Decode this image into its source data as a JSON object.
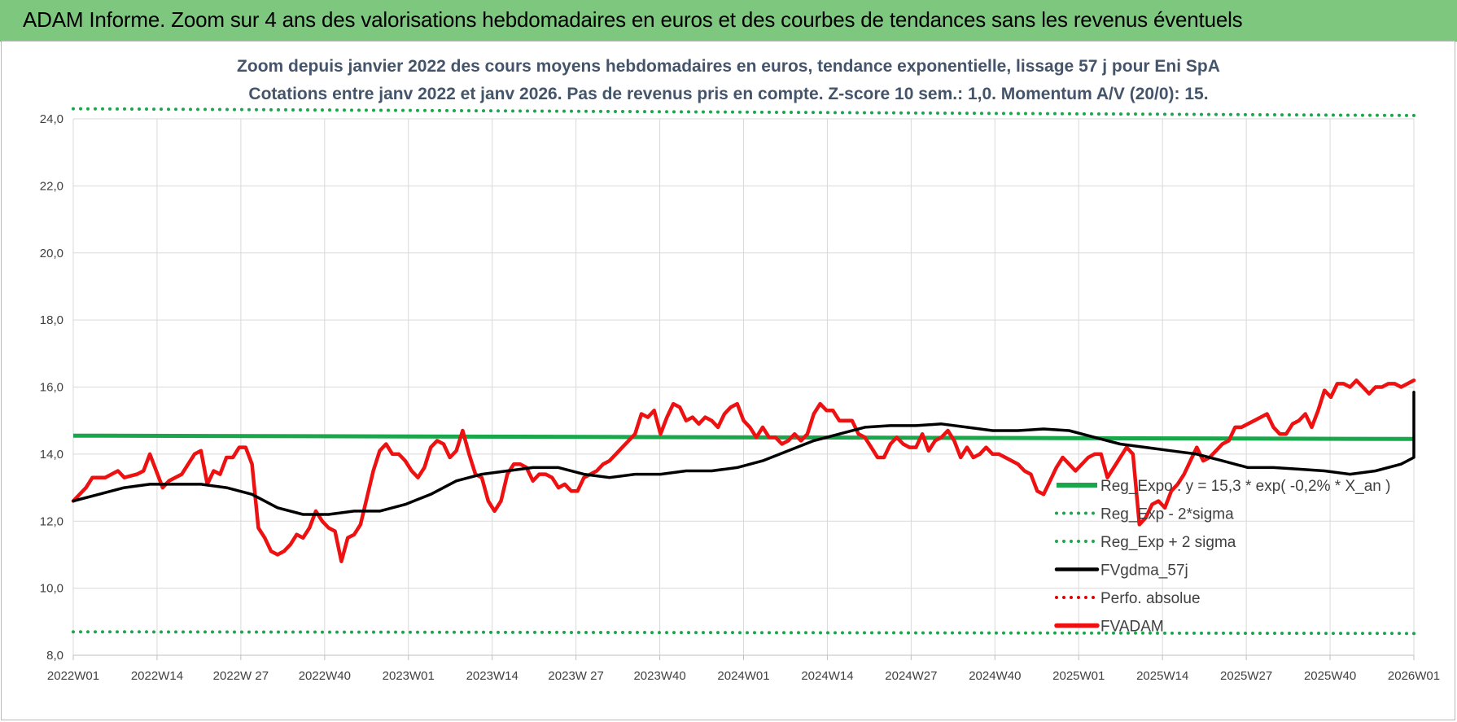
{
  "banner": {
    "title": "ADAM Informe. Zoom sur 4 ans des valorisations hebdomadaires en euros et des courbes de tendances sans les revenus éventuels"
  },
  "chart_data": {
    "type": "line",
    "title_line1": "Zoom depuis janvier 2022 des cours moyens hebdomadaires en euros, tendance exponentielle, lissage 57 j pour Eni SpA",
    "title_line2": "Cotations entre janv 2022 et janv 2026. Pas de revenus pris en compte. Z-score 10 sem.: 1,0. Momentum A/V (20/0): 15.",
    "ylim": [
      8,
      24
    ],
    "yticks": [
      "8,0",
      "10,0",
      "12,0",
      "14,0",
      "16,0",
      "18,0",
      "20,0",
      "22,0",
      "24,0"
    ],
    "x_ticks": [
      "2022W01",
      "2022W14",
      "2022W 27",
      "2022W40",
      "2023W01",
      "2023W14",
      "2023W 27",
      "2023W40",
      "2024W01",
      "2024W14",
      "2024W27",
      "2024W40",
      "2025W01",
      "2025W14",
      "2025W27",
      "2025W40",
      "2026W01"
    ],
    "n_weeks": 210,
    "grid": true,
    "legend_position": "right-bottom",
    "series": [
      {
        "name": "Reg_Expo : y = 15,3 * exp( -0,2% *  X_an )",
        "color": "#1aa64b",
        "style": "solid",
        "points": [
          [
            0,
            14.55
          ],
          [
            210,
            14.45
          ]
        ]
      },
      {
        "name": "Reg_Exp - 2*sigma",
        "color": "#1aa64b",
        "style": "dotted",
        "points": [
          [
            0,
            8.7
          ],
          [
            210,
            8.65
          ]
        ]
      },
      {
        "name": "Reg_Exp + 2 sigma",
        "color": "#1aa64b",
        "style": "dotted",
        "points": [
          [
            0,
            24.3
          ],
          [
            210,
            24.1
          ]
        ]
      },
      {
        "name": "FVgdma_57j",
        "color": "#000000",
        "style": "solid",
        "points": [
          [
            0,
            12.6
          ],
          [
            4,
            12.8
          ],
          [
            8,
            13.0
          ],
          [
            12,
            13.1
          ],
          [
            16,
            13.1
          ],
          [
            20,
            13.1
          ],
          [
            24,
            13.0
          ],
          [
            28,
            12.8
          ],
          [
            32,
            12.4
          ],
          [
            36,
            12.2
          ],
          [
            40,
            12.2
          ],
          [
            44,
            12.3
          ],
          [
            48,
            12.3
          ],
          [
            52,
            12.5
          ],
          [
            56,
            12.8
          ],
          [
            60,
            13.2
          ],
          [
            64,
            13.4
          ],
          [
            68,
            13.5
          ],
          [
            72,
            13.6
          ],
          [
            76,
            13.6
          ],
          [
            80,
            13.4
          ],
          [
            84,
            13.3
          ],
          [
            88,
            13.4
          ],
          [
            92,
            13.4
          ],
          [
            96,
            13.5
          ],
          [
            100,
            13.5
          ],
          [
            104,
            13.6
          ],
          [
            108,
            13.8
          ],
          [
            112,
            14.1
          ],
          [
            116,
            14.4
          ],
          [
            120,
            14.6
          ],
          [
            124,
            14.8
          ],
          [
            128,
            14.85
          ],
          [
            132,
            14.85
          ],
          [
            136,
            14.9
          ],
          [
            140,
            14.8
          ],
          [
            144,
            14.7
          ],
          [
            148,
            14.7
          ],
          [
            152,
            14.75
          ],
          [
            156,
            14.7
          ],
          [
            160,
            14.5
          ],
          [
            164,
            14.3
          ],
          [
            168,
            14.2
          ],
          [
            172,
            14.1
          ],
          [
            176,
            14.0
          ],
          [
            180,
            13.8
          ],
          [
            184,
            13.6
          ],
          [
            188,
            13.6
          ],
          [
            192,
            13.55
          ],
          [
            196,
            13.5
          ],
          [
            200,
            13.4
          ],
          [
            204,
            13.5
          ],
          [
            208,
            13.7
          ],
          [
            212,
            13.9
          ],
          [
            216,
            14.2
          ],
          [
            220,
            14.5
          ],
          [
            224,
            14.8
          ],
          [
            228,
            15.1
          ],
          [
            232,
            15.4
          ],
          [
            236,
            15.6
          ],
          [
            240,
            15.7
          ],
          [
            244,
            15.85
          ]
        ]
      },
      {
        "name": "Perfo. absolue",
        "color": "#e00000",
        "style": "dotted",
        "points": []
      },
      {
        "name": "FVADAM",
        "color": "#ee1111",
        "style": "solid",
        "points": [
          [
            0,
            12.6
          ],
          [
            2,
            13.0
          ],
          [
            3,
            13.3
          ],
          [
            5,
            13.3
          ],
          [
            7,
            13.5
          ],
          [
            8,
            13.3
          ],
          [
            10,
            13.4
          ],
          [
            11,
            13.5
          ],
          [
            12,
            14.0
          ],
          [
            14,
            13.0
          ],
          [
            15,
            13.2
          ],
          [
            17,
            13.4
          ],
          [
            19,
            14.0
          ],
          [
            20,
            14.1
          ],
          [
            21,
            13.1
          ],
          [
            22,
            13.5
          ],
          [
            23,
            13.4
          ],
          [
            24,
            13.9
          ],
          [
            25,
            13.9
          ],
          [
            26,
            14.2
          ],
          [
            27,
            14.2
          ],
          [
            28,
            13.7
          ],
          [
            29,
            11.8
          ],
          [
            30,
            11.5
          ],
          [
            31,
            11.1
          ],
          [
            32,
            11.0
          ],
          [
            33,
            11.1
          ],
          [
            34,
            11.3
          ],
          [
            35,
            11.6
          ],
          [
            36,
            11.5
          ],
          [
            37,
            11.8
          ],
          [
            38,
            12.3
          ],
          [
            39,
            12.0
          ],
          [
            40,
            11.8
          ],
          [
            41,
            11.7
          ],
          [
            42,
            10.8
          ],
          [
            43,
            11.5
          ],
          [
            44,
            11.6
          ],
          [
            45,
            11.9
          ],
          [
            46,
            12.7
          ],
          [
            47,
            13.5
          ],
          [
            48,
            14.1
          ],
          [
            49,
            14.3
          ],
          [
            50,
            14.0
          ],
          [
            51,
            14.0
          ],
          [
            52,
            13.8
          ],
          [
            53,
            13.5
          ],
          [
            54,
            13.3
          ],
          [
            55,
            13.6
          ],
          [
            56,
            14.2
          ],
          [
            57,
            14.4
          ],
          [
            58,
            14.3
          ],
          [
            59,
            13.9
          ],
          [
            60,
            14.1
          ],
          [
            61,
            14.7
          ],
          [
            62,
            14.0
          ],
          [
            63,
            13.4
          ],
          [
            64,
            13.3
          ],
          [
            65,
            12.6
          ],
          [
            66,
            12.3
          ],
          [
            67,
            12.6
          ],
          [
            68,
            13.4
          ],
          [
            69,
            13.7
          ],
          [
            70,
            13.7
          ],
          [
            71,
            13.6
          ],
          [
            72,
            13.2
          ],
          [
            73,
            13.4
          ],
          [
            74,
            13.4
          ],
          [
            75,
            13.3
          ],
          [
            76,
            13.0
          ],
          [
            77,
            13.1
          ],
          [
            78,
            12.9
          ],
          [
            79,
            12.9
          ],
          [
            80,
            13.3
          ],
          [
            81,
            13.4
          ],
          [
            82,
            13.5
          ],
          [
            83,
            13.7
          ],
          [
            84,
            13.8
          ],
          [
            85,
            14.0
          ],
          [
            86,
            14.2
          ],
          [
            87,
            14.4
          ],
          [
            88,
            14.6
          ],
          [
            89,
            15.2
          ],
          [
            90,
            15.1
          ],
          [
            91,
            15.3
          ],
          [
            92,
            14.6
          ],
          [
            93,
            15.1
          ],
          [
            94,
            15.5
          ],
          [
            95,
            15.4
          ],
          [
            96,
            15.0
          ],
          [
            97,
            15.1
          ],
          [
            98,
            14.9
          ],
          [
            99,
            15.1
          ],
          [
            100,
            15.0
          ],
          [
            101,
            14.8
          ],
          [
            102,
            15.2
          ],
          [
            103,
            15.4
          ],
          [
            104,
            15.5
          ],
          [
            105,
            15.0
          ],
          [
            106,
            14.8
          ],
          [
            107,
            14.5
          ],
          [
            108,
            14.8
          ],
          [
            109,
            14.5
          ],
          [
            110,
            14.5
          ],
          [
            111,
            14.3
          ],
          [
            112,
            14.4
          ],
          [
            113,
            14.6
          ],
          [
            114,
            14.4
          ],
          [
            115,
            14.6
          ],
          [
            116,
            15.2
          ],
          [
            117,
            15.5
          ],
          [
            118,
            15.3
          ],
          [
            119,
            15.3
          ],
          [
            120,
            15.0
          ],
          [
            121,
            15.0
          ],
          [
            122,
            15.0
          ],
          [
            123,
            14.6
          ],
          [
            124,
            14.5
          ],
          [
            125,
            14.2
          ],
          [
            126,
            13.9
          ],
          [
            127,
            13.9
          ],
          [
            128,
            14.3
          ],
          [
            129,
            14.5
          ],
          [
            130,
            14.3
          ],
          [
            131,
            14.2
          ],
          [
            132,
            14.2
          ],
          [
            133,
            14.6
          ],
          [
            134,
            14.1
          ],
          [
            135,
            14.4
          ],
          [
            136,
            14.5
          ],
          [
            137,
            14.7
          ],
          [
            138,
            14.4
          ],
          [
            139,
            13.9
          ],
          [
            140,
            14.2
          ],
          [
            141,
            13.9
          ],
          [
            142,
            14.0
          ],
          [
            143,
            14.2
          ],
          [
            144,
            14.0
          ],
          [
            145,
            14.0
          ],
          [
            146,
            13.9
          ],
          [
            147,
            13.8
          ],
          [
            148,
            13.7
          ],
          [
            149,
            13.5
          ],
          [
            150,
            13.4
          ],
          [
            151,
            12.9
          ],
          [
            152,
            12.8
          ],
          [
            153,
            13.2
          ],
          [
            154,
            13.6
          ],
          [
            155,
            13.9
          ],
          [
            156,
            13.7
          ],
          [
            157,
            13.5
          ],
          [
            158,
            13.7
          ],
          [
            159,
            13.9
          ],
          [
            160,
            14.0
          ],
          [
            161,
            14.0
          ],
          [
            162,
            13.3
          ],
          [
            163,
            13.6
          ],
          [
            164,
            13.9
          ],
          [
            165,
            14.2
          ],
          [
            166,
            14.0
          ],
          [
            167,
            11.9
          ],
          [
            168,
            12.1
          ],
          [
            169,
            12.5
          ],
          [
            170,
            12.6
          ],
          [
            171,
            12.4
          ],
          [
            172,
            12.9
          ],
          [
            173,
            13.1
          ],
          [
            174,
            13.4
          ],
          [
            175,
            13.8
          ],
          [
            176,
            14.2
          ],
          [
            177,
            13.8
          ],
          [
            178,
            13.9
          ],
          [
            179,
            14.1
          ],
          [
            180,
            14.3
          ],
          [
            181,
            14.4
          ],
          [
            182,
            14.8
          ],
          [
            183,
            14.8
          ],
          [
            184,
            14.9
          ],
          [
            185,
            15.0
          ],
          [
            186,
            15.1
          ],
          [
            187,
            15.2
          ],
          [
            188,
            14.8
          ],
          [
            189,
            14.6
          ],
          [
            190,
            14.6
          ],
          [
            191,
            14.9
          ],
          [
            192,
            15.0
          ],
          [
            193,
            15.2
          ],
          [
            194,
            14.8
          ],
          [
            195,
            15.3
          ],
          [
            196,
            15.9
          ],
          [
            197,
            15.7
          ],
          [
            198,
            16.1
          ],
          [
            199,
            16.1
          ],
          [
            200,
            16.0
          ],
          [
            201,
            16.2
          ],
          [
            202,
            16.0
          ],
          [
            203,
            15.8
          ],
          [
            204,
            16.0
          ],
          [
            205,
            16.0
          ],
          [
            206,
            16.1
          ],
          [
            207,
            16.1
          ],
          [
            208,
            16.0
          ],
          [
            209,
            16.1
          ],
          [
            210,
            16.2
          ]
        ]
      }
    ]
  }
}
